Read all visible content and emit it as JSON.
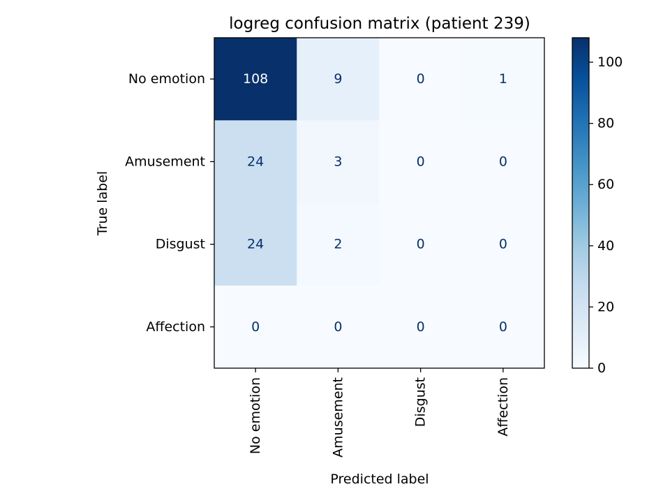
{
  "chart_data": {
    "type": "heatmap",
    "title": "logreg confusion matrix (patient 239)",
    "xlabel": "Predicted label",
    "ylabel": "True label",
    "x_categories": [
      "No emotion",
      "Amusement",
      "Disgust",
      "Affection"
    ],
    "y_categories": [
      "No emotion",
      "Amusement",
      "Disgust",
      "Affection"
    ],
    "values": [
      [
        108,
        9,
        0,
        1
      ],
      [
        24,
        3,
        0,
        0
      ],
      [
        24,
        2,
        0,
        0
      ],
      [
        0,
        0,
        0,
        0
      ]
    ],
    "colormap": "Blues",
    "color_range": [
      0,
      108
    ],
    "colorbar": {
      "ticks": [
        0,
        20,
        40,
        60,
        80,
        100
      ],
      "tick_labels": [
        "0",
        "20",
        "40",
        "60",
        "80",
        "100"
      ]
    },
    "low_value_text_color": "#08306b",
    "high_value_text_color": "#ffffff",
    "grid": false
  }
}
